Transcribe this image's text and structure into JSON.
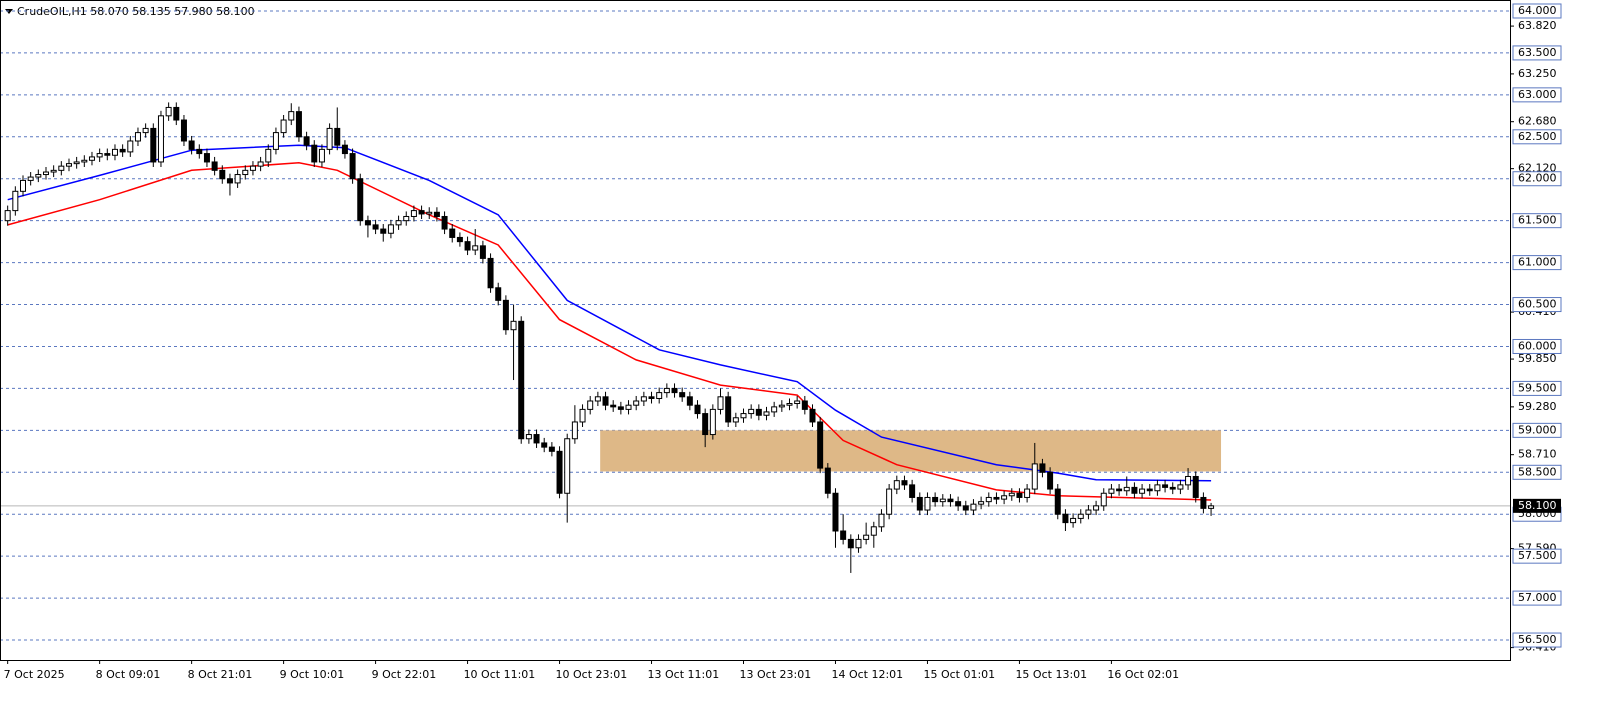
{
  "chart_data": {
    "type": "candlestick",
    "title": "CrudeOIL,H1  58.070 58.135 57.980 58.100",
    "xlim": [
      -1,
      196
    ],
    "ylim": [
      56.262,
      64.131
    ],
    "xticks": [
      {
        "value": 0,
        "label": "7 Oct 2025"
      },
      {
        "value": 12,
        "label": "8 Oct 09:01"
      },
      {
        "value": 24,
        "label": "8 Oct 21:01"
      },
      {
        "value": 36,
        "label": "9 Oct 10:01"
      },
      {
        "value": 48,
        "label": "9 Oct 22:01"
      },
      {
        "value": 60,
        "label": "10 Oct 11:01"
      },
      {
        "value": 72,
        "label": "10 Oct 23:01"
      },
      {
        "value": 84,
        "label": "13 Oct 11:01"
      },
      {
        "value": 96,
        "label": "13 Oct 23:01"
      },
      {
        "value": 108,
        "label": "14 Oct 12:01"
      },
      {
        "value": 120,
        "label": "15 Oct 01:01"
      },
      {
        "value": 132,
        "label": "15 Oct 13:01"
      },
      {
        "value": 144,
        "label": "16 Oct 02:01"
      }
    ],
    "yticks": [
      {
        "value": 63.82,
        "label": "63.820"
      },
      {
        "value": 63.25,
        "label": "63.250"
      },
      {
        "value": 62.68,
        "label": "62.680"
      },
      {
        "value": 62.12,
        "label": "62.120"
      },
      {
        "value": 60.41,
        "label": "60.410"
      },
      {
        "value": 59.85,
        "label": "59.850"
      },
      {
        "value": 59.28,
        "label": "59.280"
      },
      {
        "value": 58.71,
        "label": "58.710"
      },
      {
        "value": 57.59,
        "label": "57.590"
      },
      {
        "value": 56.41,
        "label": "56.410"
      }
    ],
    "levels": [
      {
        "value": 64,
        "label": "64.000"
      },
      {
        "value": 63.5,
        "label": "63.500"
      },
      {
        "value": 63,
        "label": "63.000"
      },
      {
        "value": 62.5,
        "label": "62.500"
      },
      {
        "value": 62,
        "label": "62.000"
      },
      {
        "value": 61.5,
        "label": "61.500"
      },
      {
        "value": 61,
        "label": "61.000"
      },
      {
        "value": 60.5,
        "label": "60.500"
      },
      {
        "value": 60,
        "label": "60.000"
      },
      {
        "value": 59.5,
        "label": "59.500"
      },
      {
        "value": 59,
        "label": "59.000"
      },
      {
        "value": 58.5,
        "label": "58.500"
      },
      {
        "value": 58,
        "label": "58.000"
      },
      {
        "value": 57.5,
        "label": "57.500"
      },
      {
        "value": 57,
        "label": "57.000"
      },
      {
        "value": 56.5,
        "label": "56.500"
      }
    ],
    "grid": true,
    "grid_color": "#5b78c0",
    "price_line": {
      "value": 58.1,
      "label": "58.100",
      "color": "#b8b8b8"
    },
    "zone": {
      "x": [
        77.3,
        158.3
      ],
      "y": [
        58.51,
        59.0
      ],
      "color": "#deb887"
    },
    "up_color": "#ffffff",
    "down_color": "#000000",
    "open": [
      61.5,
      61.62,
      61.85,
      61.98,
      62.02,
      62.05,
      62.08,
      62.1,
      62.15,
      62.18,
      62.2,
      62.22,
      62.26,
      62.3,
      62.28,
      62.35,
      62.32,
      62.45,
      62.55,
      62.6,
      62.2,
      62.75,
      62.85,
      62.7,
      62.45,
      62.35,
      62.3,
      62.2,
      62.1,
      62.0,
      61.95,
      62.05,
      62.1,
      62.15,
      62.2,
      62.35,
      62.55,
      62.7,
      62.8,
      62.5,
      62.4,
      62.2,
      62.35,
      62.6,
      62.4,
      62.3,
      62.0,
      61.5,
      61.45,
      61.4,
      61.35,
      61.45,
      61.5,
      61.55,
      61.62,
      61.58,
      61.6,
      61.55,
      61.4,
      61.3,
      61.25,
      61.15,
      61.2,
      61.05,
      60.7,
      60.55,
      60.2,
      60.3,
      58.9,
      58.95,
      58.85,
      58.8,
      58.75,
      58.25,
      58.9,
      59.1,
      59.25,
      59.35,
      59.4,
      59.3,
      59.28,
      59.25,
      59.3,
      59.35,
      59.4,
      59.38,
      59.45,
      59.5,
      59.45,
      59.4,
      59.3,
      59.2,
      58.95,
      59.25,
      59.4,
      59.1,
      59.15,
      59.2,
      59.25,
      59.18,
      59.22,
      59.28,
      59.3,
      59.32,
      59.35,
      59.25,
      59.1,
      58.55,
      58.25,
      57.8,
      57.7,
      57.6,
      57.7,
      57.75,
      57.85,
      58.0,
      58.3,
      58.4,
      58.35,
      58.2,
      58.05,
      58.2,
      58.15,
      58.18,
      58.15,
      58.1,
      58.05,
      58.12,
      58.15,
      58.2,
      58.18,
      58.22,
      58.25,
      58.2,
      58.3,
      58.6,
      58.5,
      58.3,
      58.0,
      57.9,
      57.95,
      58.0,
      58.05,
      58.1,
      58.25,
      58.3,
      58.28,
      58.32,
      58.25,
      58.3,
      58.28,
      58.35,
      58.32,
      58.3,
      58.35,
      58.45,
      58.2,
      58.07
    ],
    "high": [
      61.68,
      61.91,
      62.04,
      62.08,
      62.11,
      62.14,
      62.16,
      62.21,
      62.24,
      62.26,
      62.28,
      62.32,
      62.36,
      62.36,
      62.41,
      62.41,
      62.51,
      62.61,
      62.66,
      62.66,
      62.81,
      62.91,
      62.91,
      62.76,
      62.51,
      62.41,
      62.36,
      62.26,
      62.16,
      62.06,
      62.11,
      62.16,
      62.21,
      62.26,
      62.41,
      62.61,
      62.76,
      62.9,
      62.86,
      62.56,
      62.46,
      62.41,
      62.66,
      62.85,
      62.46,
      62.36,
      62.06,
      61.56,
      61.51,
      61.46,
      61.51,
      61.56,
      61.61,
      61.68,
      61.68,
      61.66,
      61.66,
      61.61,
      61.46,
      61.36,
      61.31,
      61.4,
      61.26,
      61.11,
      60.76,
      60.61,
      60.5,
      60.36,
      59.01,
      59.01,
      58.91,
      58.86,
      58.81,
      58.96,
      59.3,
      59.31,
      59.41,
      59.46,
      59.46,
      59.36,
      59.34,
      59.36,
      59.41,
      59.46,
      59.46,
      59.51,
      59.56,
      59.56,
      59.51,
      59.46,
      59.36,
      59.26,
      59.31,
      59.5,
      59.46,
      59.21,
      59.26,
      59.31,
      59.31,
      59.28,
      59.34,
      59.36,
      59.38,
      59.41,
      59.41,
      59.31,
      59.16,
      58.61,
      58.31,
      58.0,
      57.76,
      57.76,
      57.9,
      57.91,
      58.06,
      58.36,
      58.46,
      58.46,
      58.41,
      58.26,
      58.26,
      58.26,
      58.24,
      58.24,
      58.21,
      58.16,
      58.18,
      58.21,
      58.26,
      58.26,
      58.28,
      58.31,
      58.31,
      58.36,
      58.85,
      58.66,
      58.56,
      58.36,
      58.06,
      58.01,
      58.06,
      58.11,
      58.16,
      58.31,
      58.36,
      58.36,
      58.45,
      58.38,
      58.36,
      58.36,
      58.41,
      58.41,
      58.38,
      58.41,
      58.55,
      58.51,
      58.26,
      58.135
    ],
    "low": [
      61.44,
      61.56,
      61.79,
      61.92,
      61.96,
      61.99,
      62.02,
      62.04,
      62.09,
      62.12,
      62.14,
      62.16,
      62.2,
      62.22,
      62.22,
      62.26,
      62.26,
      62.39,
      62.49,
      62.14,
      62.14,
      62.69,
      62.64,
      62.39,
      62.29,
      62.24,
      62.14,
      62.04,
      61.94,
      61.8,
      61.89,
      61.99,
      62.04,
      62.09,
      62.14,
      62.29,
      62.49,
      62.64,
      62.44,
      62.34,
      62.14,
      62.14,
      62.29,
      62.34,
      62.24,
      61.94,
      61.44,
      61.3,
      61.34,
      61.25,
      61.29,
      61.39,
      61.44,
      61.49,
      61.52,
      61.52,
      61.49,
      61.34,
      61.24,
      61.19,
      61.09,
      61.09,
      60.99,
      60.64,
      60.49,
      60.14,
      59.6,
      58.84,
      58.84,
      58.79,
      58.74,
      58.69,
      58.19,
      57.9,
      58.84,
      59.04,
      59.19,
      59.29,
      59.24,
      59.22,
      59.19,
      59.19,
      59.24,
      59.29,
      59.32,
      59.32,
      59.39,
      59.39,
      59.34,
      59.24,
      59.14,
      58.8,
      58.89,
      59.19,
      59.04,
      59.04,
      59.09,
      59.14,
      59.12,
      59.12,
      59.16,
      59.22,
      59.24,
      59.26,
      59.19,
      59.04,
      58.49,
      58.19,
      57.6,
      57.64,
      57.3,
      57.54,
      57.64,
      57.6,
      57.79,
      57.94,
      58.24,
      58.29,
      58.14,
      57.99,
      57.99,
      58.09,
      58.09,
      58.09,
      58.04,
      57.99,
      57.99,
      58.06,
      58.09,
      58.12,
      58.12,
      58.16,
      58.14,
      58.14,
      58.24,
      58.44,
      58.24,
      57.94,
      57.8,
      57.84,
      57.89,
      57.94,
      57.99,
      58.04,
      58.19,
      58.22,
      58.22,
      58.19,
      58.19,
      58.22,
      58.22,
      58.26,
      58.24,
      58.24,
      58.29,
      58.14,
      58.01,
      57.98
    ],
    "close": [
      61.62,
      61.85,
      61.98,
      62.02,
      62.05,
      62.08,
      62.1,
      62.15,
      62.18,
      62.2,
      62.22,
      62.26,
      62.3,
      62.28,
      62.35,
      62.32,
      62.45,
      62.55,
      62.6,
      62.2,
      62.75,
      62.85,
      62.7,
      62.45,
      62.35,
      62.3,
      62.2,
      62.1,
      62.0,
      61.95,
      62.05,
      62.1,
      62.15,
      62.2,
      62.35,
      62.55,
      62.7,
      62.8,
      62.5,
      62.4,
      62.2,
      62.35,
      62.6,
      62.4,
      62.3,
      62.0,
      61.5,
      61.45,
      61.4,
      61.35,
      61.45,
      61.5,
      61.55,
      61.62,
      61.58,
      61.6,
      61.55,
      61.4,
      61.3,
      61.25,
      61.15,
      61.2,
      61.05,
      60.7,
      60.55,
      60.2,
      60.3,
      58.9,
      58.95,
      58.85,
      58.8,
      58.75,
      58.25,
      58.9,
      59.1,
      59.25,
      59.35,
      59.4,
      59.3,
      59.28,
      59.25,
      59.3,
      59.35,
      59.4,
      59.38,
      59.45,
      59.5,
      59.45,
      59.4,
      59.3,
      59.2,
      58.95,
      59.25,
      59.4,
      59.1,
      59.15,
      59.2,
      59.25,
      59.18,
      59.22,
      59.28,
      59.3,
      59.32,
      59.35,
      59.25,
      59.1,
      58.55,
      58.25,
      57.8,
      57.7,
      57.6,
      57.7,
      57.75,
      57.85,
      58.0,
      58.3,
      58.4,
      58.35,
      58.2,
      58.05,
      58.2,
      58.15,
      58.18,
      58.15,
      58.1,
      58.05,
      58.12,
      58.15,
      58.2,
      58.18,
      58.22,
      58.25,
      58.2,
      58.3,
      58.6,
      58.5,
      58.3,
      58.0,
      57.9,
      57.95,
      58.0,
      58.05,
      58.1,
      58.25,
      58.3,
      58.28,
      58.32,
      58.25,
      58.3,
      58.28,
      58.35,
      58.32,
      58.3,
      58.35,
      58.45,
      58.2,
      58.07,
      58.1
    ],
    "lines": [
      {
        "color": "#0000ff",
        "x": [
          0,
          12,
          24,
          38,
          44,
          55,
          64,
          73,
          85,
          93,
          103,
          108,
          114,
          129,
          137,
          142,
          157
        ],
        "values": [
          61.75,
          62.04,
          62.34,
          62.4,
          62.37,
          61.98,
          61.57,
          60.55,
          59.96,
          59.78,
          59.58,
          59.24,
          58.92,
          58.59,
          58.49,
          58.41,
          58.4
        ]
      },
      {
        "color": "#ff0000",
        "x": [
          0,
          12,
          24,
          38,
          43,
          55,
          64,
          72,
          82,
          93,
          103,
          109,
          116,
          129,
          137,
          149,
          157
        ],
        "values": [
          61.45,
          61.75,
          62.1,
          62.19,
          62.1,
          61.57,
          61.21,
          60.32,
          59.84,
          59.54,
          59.42,
          58.88,
          58.59,
          58.29,
          58.22,
          58.19,
          58.17
        ]
      }
    ]
  }
}
